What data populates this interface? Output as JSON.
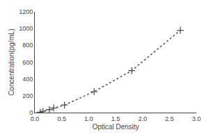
{
  "chart_data": {
    "type": "line",
    "xlabel": "Optical Density",
    "ylabel": "Concentration(pg/mL)",
    "x": [
      0.1,
      0.15,
      0.27,
      0.35,
      0.55,
      1.1,
      1.8,
      2.7
    ],
    "values": [
      5,
      15,
      35,
      55,
      90,
      250,
      500,
      980
    ],
    "color": "#555555",
    "marker": "plus",
    "line_style": "dotted",
    "xlim": [
      0,
      3
    ],
    "ylim": [
      0,
      1200
    ],
    "xticks": [
      {
        "value": 0,
        "label": "0.0"
      },
      0.5,
      {
        "value": 1,
        "label": "1.0"
      },
      1.5,
      {
        "value": 2,
        "label": "2.0"
      },
      2.5,
      {
        "value": 3,
        "label": "3.0"
      }
    ],
    "yticks": [
      0,
      200,
      400,
      600,
      800,
      1000,
      1200
    ],
    "grid": false
  }
}
